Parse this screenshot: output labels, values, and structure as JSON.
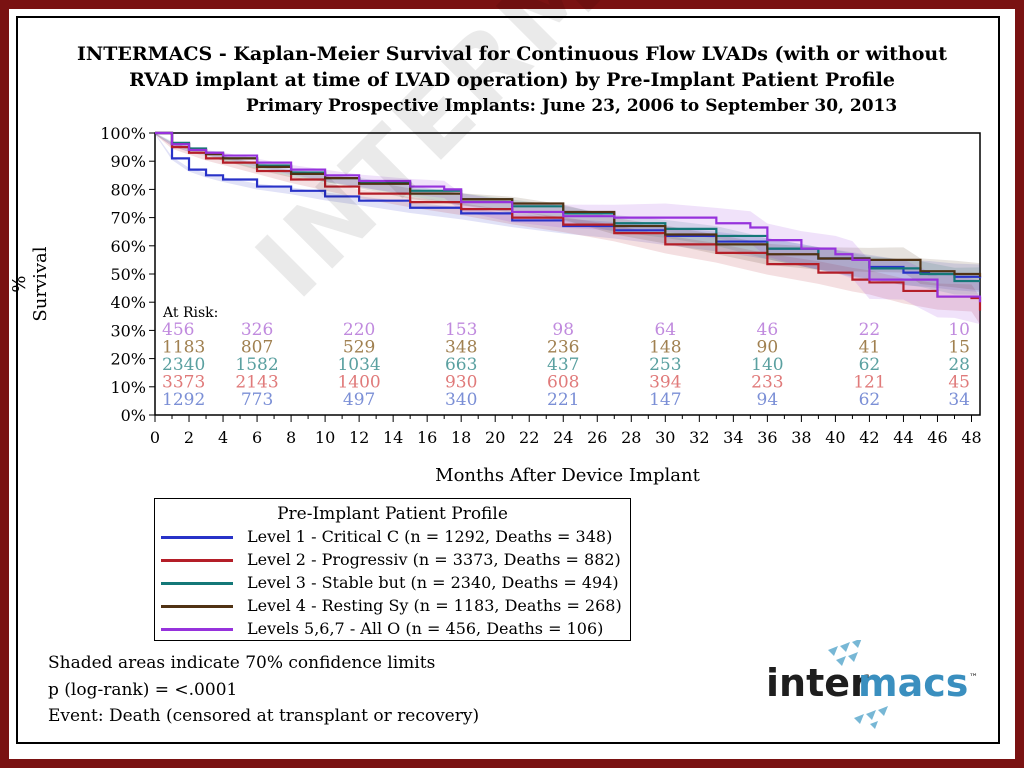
{
  "title_line1": "INTERMACS - Kaplan-Meier Survival for Continuous Flow LVADs (with or without",
  "title_line2": "RVAD implant at time of LVAD operation) by Pre-Implant Patient Profile",
  "subtitle": "Primary Prospective Implants: June 23, 2006 to September 30, 2013",
  "watermark": "INTERMACS",
  "notes": [
    "Shaded areas indicate 70% confidence limits",
    "p (log-rank) = <.0001",
    "Event: Death (censored at transplant or recovery)"
  ],
  "logo": {
    "part1": "inter",
    "part2": "macs",
    "tm": "™"
  },
  "legend": {
    "title": "Pre-Implant Patient Profile",
    "items": [
      "Level 1 - Critical C (n = 1292, Deaths = 348)",
      "Level 2 - Progressiv (n = 3373, Deaths = 882)",
      "Level 3 - Stable but (n = 2340, Deaths = 494)",
      "Level 4 - Resting Sy (n = 1183, Deaths = 268)",
      "Levels 5,6,7 - All O (n = 456, Deaths = 106)"
    ]
  },
  "chart_data": {
    "type": "line",
    "xlabel": "Months After Device Implant",
    "ylabel": "% Survival",
    "xlim": [
      0,
      48.5
    ],
    "ylim": [
      0,
      100
    ],
    "x_ticks": [
      0,
      2,
      4,
      6,
      8,
      10,
      12,
      14,
      16,
      18,
      20,
      22,
      24,
      26,
      28,
      30,
      32,
      34,
      36,
      38,
      40,
      42,
      44,
      46,
      48
    ],
    "y_ticks": [
      "0%",
      "10%",
      "20%",
      "30%",
      "40%",
      "50%",
      "60%",
      "70%",
      "80%",
      "90%",
      "100%"
    ],
    "at_risk_label": "At Risk:",
    "at_risk_months": [
      0,
      6,
      12,
      18,
      24,
      30,
      36,
      42,
      48
    ],
    "series": [
      {
        "name": "Level 1 - Critical C",
        "color": "#2832c8",
        "risk_color": "#7b8fd6",
        "x": [
          0,
          1,
          2,
          3,
          4,
          6,
          8,
          10,
          12,
          15,
          18,
          21,
          24,
          27,
          30,
          33,
          36,
          39,
          42,
          44,
          45.5,
          47,
          48.5
        ],
        "y": [
          100,
          91,
          87,
          85,
          83.5,
          81,
          79.5,
          77.5,
          76,
          73.5,
          71.5,
          69,
          67,
          65.5,
          63.5,
          61.5,
          59,
          55.5,
          52.5,
          50.5,
          50,
          49,
          48.5
        ],
        "at_risk": [
          1292,
          773,
          497,
          340,
          221,
          147,
          94,
          62,
          34
        ]
      },
      {
        "name": "Level 2 - Progressiv",
        "color": "#b41e28",
        "risk_color": "#e07a7a",
        "x": [
          0,
          1,
          2,
          3,
          4,
          6,
          8,
          10,
          12,
          15,
          18,
          21,
          24,
          27,
          30,
          33,
          36,
          39,
          41,
          42,
          44,
          46,
          48,
          48.5
        ],
        "y": [
          100,
          95,
          93,
          91,
          89.5,
          86.5,
          83.5,
          81,
          78.5,
          75.5,
          73,
          70,
          67.5,
          64.5,
          60.5,
          57.5,
          53.5,
          50.5,
          48,
          47,
          44,
          42,
          41.5,
          37
        ],
        "at_risk": [
          3373,
          2143,
          1400,
          930,
          608,
          394,
          233,
          121,
          45
        ]
      },
      {
        "name": "Level 3 - Stable but",
        "color": "#147878",
        "risk_color": "#5aa0a0",
        "x": [
          0,
          1,
          2,
          3,
          4,
          6,
          8,
          10,
          12,
          15,
          18,
          21,
          24,
          27,
          30,
          33,
          36,
          39,
          42,
          45,
          47,
          48.5
        ],
        "y": [
          100,
          96.5,
          94.5,
          93,
          91,
          88.5,
          86,
          84,
          82.5,
          79.5,
          76.5,
          74,
          71.5,
          68,
          66,
          63.5,
          59,
          55.5,
          52,
          50,
          47.5,
          47.5
        ],
        "at_risk": [
          2340,
          1582,
          1034,
          663,
          437,
          253,
          140,
          62,
          28
        ]
      },
      {
        "name": "Level 4 - Resting Sy",
        "color": "#503214",
        "risk_color": "#a08050",
        "x": [
          0,
          1,
          2,
          3,
          4,
          6,
          8,
          10,
          12,
          15,
          18,
          21,
          24,
          27,
          30,
          33,
          36,
          39,
          42,
          44,
          45,
          47,
          48.5
        ],
        "y": [
          100,
          96,
          94,
          92.5,
          91,
          88,
          85.5,
          84,
          82,
          78.5,
          76.5,
          75,
          72,
          67,
          64,
          60.5,
          57,
          55.5,
          55,
          55,
          51,
          50,
          49
        ],
        "at_risk": [
          1183,
          807,
          529,
          348,
          236,
          148,
          90,
          41,
          15
        ]
      },
      {
        "name": "Levels 5,6,7 - All O",
        "color": "#9632dc",
        "risk_color": "#c08ade",
        "x": [
          0,
          1,
          2,
          3,
          4,
          6,
          8,
          10,
          12,
          15,
          17,
          18,
          21,
          24,
          27,
          30,
          33,
          35,
          36,
          38,
          40,
          41,
          42,
          44,
          46,
          47,
          48.5
        ],
        "y": [
          100,
          96,
          94,
          93,
          92,
          89.5,
          87,
          85,
          83,
          81,
          80,
          75.5,
          72,
          70.5,
          70,
          70,
          68,
          66.5,
          62,
          59,
          57,
          55,
          48,
          48,
          42,
          42,
          40
        ],
        "at_risk": [
          456,
          326,
          220,
          153,
          98,
          64,
          46,
          22,
          10
        ]
      }
    ]
  }
}
